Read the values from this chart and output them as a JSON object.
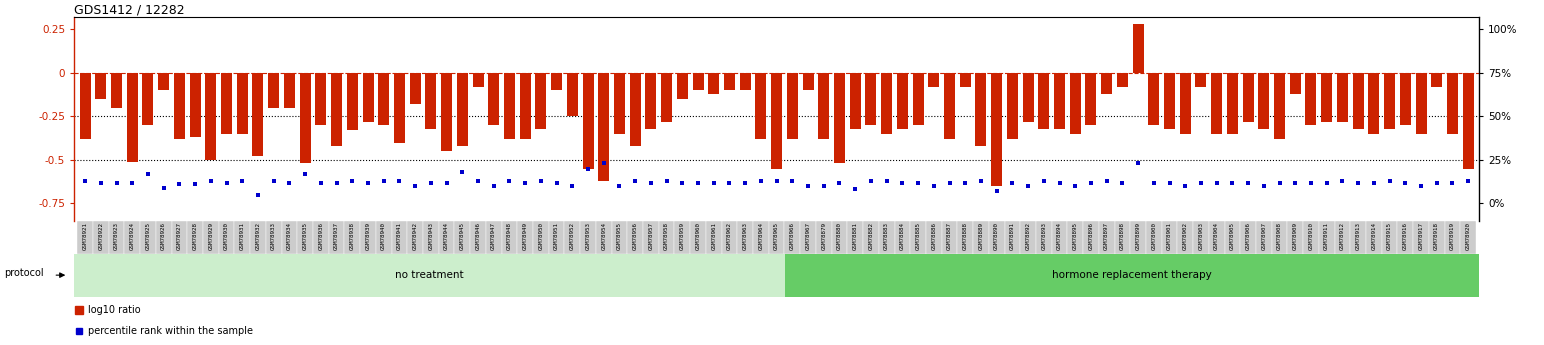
{
  "title": "GDS1412 / 12282",
  "bar_color": "#cc2200",
  "dot_color": "#0000cc",
  "no_treatment_bg": "#cceecc",
  "hrt_bg": "#66cc66",
  "xlabel_bg": "#cccccc",
  "no_treatment_label": "no treatment",
  "hrt_label": "hormone replacement therapy",
  "protocol_label": "protocol",
  "legend_red": "log10 ratio",
  "legend_blue": "percentile rank within the sample",
  "samples": [
    "GSM78921",
    "GSM78922",
    "GSM78923",
    "GSM78924",
    "GSM78925",
    "GSM78926",
    "GSM78927",
    "GSM78928",
    "GSM78929",
    "GSM78930",
    "GSM78931",
    "GSM78932",
    "GSM78933",
    "GSM78934",
    "GSM78935",
    "GSM78936",
    "GSM78937",
    "GSM78938",
    "GSM78939",
    "GSM78940",
    "GSM78941",
    "GSM78942",
    "GSM78943",
    "GSM78944",
    "GSM78945",
    "GSM78946",
    "GSM78947",
    "GSM78948",
    "GSM78949",
    "GSM78950",
    "GSM78951",
    "GSM78952",
    "GSM78953",
    "GSM78954",
    "GSM78955",
    "GSM78956",
    "GSM78957",
    "GSM78958",
    "GSM78959",
    "GSM78960",
    "GSM78961",
    "GSM78962",
    "GSM78963",
    "GSM78964",
    "GSM78965",
    "GSM78966",
    "GSM78967",
    "GSM78879",
    "GSM78880",
    "GSM78881",
    "GSM78882",
    "GSM78883",
    "GSM78884",
    "GSM78885",
    "GSM78886",
    "GSM78887",
    "GSM78888",
    "GSM78889",
    "GSM78890",
    "GSM78891",
    "GSM78892",
    "GSM78893",
    "GSM78894",
    "GSM78895",
    "GSM78896",
    "GSM78897",
    "GSM78898",
    "GSM78899",
    "GSM78900",
    "GSM78901",
    "GSM78902",
    "GSM78903",
    "GSM78904",
    "GSM78905",
    "GSM78906",
    "GSM78907",
    "GSM78908",
    "GSM78909",
    "GSM78910",
    "GSM78911",
    "GSM78912",
    "GSM78913",
    "GSM78914",
    "GSM78915",
    "GSM78916",
    "GSM78917",
    "GSM78918",
    "GSM78919",
    "GSM78920"
  ],
  "no_treatment_count": 45,
  "log10_values": [
    -0.38,
    -0.15,
    -0.2,
    -0.51,
    -0.3,
    -0.1,
    -0.38,
    -0.37,
    -0.5,
    -0.35,
    -0.35,
    -0.48,
    -0.2,
    -0.2,
    -0.52,
    -0.3,
    -0.42,
    -0.33,
    -0.28,
    -0.3,
    -0.4,
    -0.18,
    -0.32,
    -0.45,
    -0.42,
    -0.08,
    -0.3,
    -0.38,
    -0.38,
    -0.32,
    -0.1,
    -0.25,
    -0.55,
    -0.62,
    -0.35,
    -0.42,
    -0.32,
    -0.28,
    -0.15,
    -0.1,
    -0.12,
    -0.1,
    -0.1,
    -0.38,
    -0.55,
    -0.38,
    -0.1,
    -0.38,
    -0.52,
    -0.32,
    -0.3,
    -0.35,
    -0.32,
    -0.3,
    -0.08,
    -0.38,
    -0.08,
    -0.42,
    -0.65,
    -0.38,
    -0.28,
    -0.32,
    -0.32,
    -0.35,
    -0.3,
    -0.12,
    -0.08,
    0.28,
    -0.3,
    -0.32,
    -0.35,
    -0.08,
    -0.35,
    -0.35,
    -0.28,
    -0.32,
    -0.38,
    -0.12,
    -0.3,
    -0.28,
    -0.28,
    -0.32,
    -0.35,
    -0.32,
    -0.3,
    -0.35,
    -0.08,
    -0.35,
    -0.55
  ],
  "percentile_values": [
    -0.62,
    -0.63,
    -0.63,
    -0.63,
    -0.58,
    -0.66,
    -0.64,
    -0.64,
    -0.62,
    -0.63,
    -0.62,
    -0.7,
    -0.62,
    -0.63,
    -0.58,
    -0.63,
    -0.63,
    -0.62,
    -0.63,
    -0.62,
    -0.62,
    -0.65,
    -0.63,
    -0.63,
    -0.57,
    -0.62,
    -0.65,
    -0.62,
    -0.63,
    -0.62,
    -0.63,
    -0.65,
    -0.55,
    -0.52,
    -0.65,
    -0.62,
    -0.63,
    -0.62,
    -0.63,
    -0.63,
    -0.63,
    -0.63,
    -0.63,
    -0.62,
    -0.62,
    -0.62,
    -0.65,
    -0.65,
    -0.63,
    -0.67,
    -0.62,
    -0.62,
    -0.63,
    -0.63,
    -0.65,
    -0.63,
    -0.63,
    -0.62,
    -0.68,
    -0.63,
    -0.65,
    -0.62,
    -0.63,
    -0.65,
    -0.63,
    -0.62,
    -0.63,
    -0.52,
    -0.63,
    -0.63,
    -0.65,
    -0.63,
    -0.63,
    -0.63,
    -0.63,
    -0.65,
    -0.63,
    -0.63,
    -0.63,
    -0.63,
    -0.62,
    -0.63,
    -0.63,
    -0.62,
    -0.63,
    -0.65,
    -0.63,
    -0.63,
    -0.62
  ]
}
